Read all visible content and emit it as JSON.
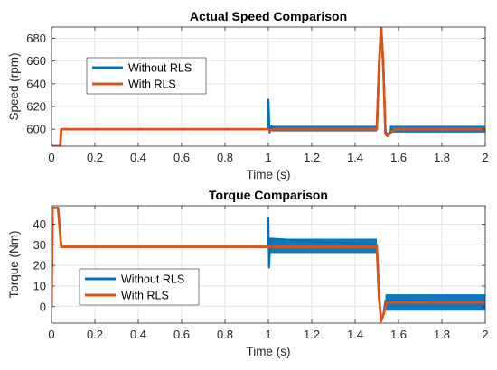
{
  "chart_data": [
    {
      "type": "line",
      "title": "Actual Speed Comparison",
      "xlabel": "Time (s)",
      "ylabel": "Speed (rpm)",
      "xlim": [
        0,
        2
      ],
      "ylim": [
        585,
        690
      ],
      "xticks": [
        "0",
        "0.2",
        "0.4",
        "0.6",
        "0.8",
        "1",
        "1.2",
        "1.4",
        "1.6",
        "1.8",
        "2"
      ],
      "yticks": [
        "600",
        "620",
        "640",
        "660",
        "680"
      ],
      "grid": true,
      "legend_position": "upper-left",
      "series": [
        {
          "name": "Without RLS",
          "color": "#0072BD",
          "points": [
            [
              0,
              585
            ],
            [
              0.04,
              585
            ],
            [
              0.045,
              600
            ],
            [
              1.0,
              600
            ],
            [
              1.0,
              626
            ],
            [
              1.006,
              597
            ],
            [
              1.015,
              603
            ],
            [
              1.03,
              600
            ],
            [
              1.5,
              600
            ],
            [
              1.51,
              660
            ],
            [
              1.52,
              690
            ],
            [
              1.53,
              660
            ],
            [
              1.54,
              598
            ],
            [
              1.55,
              595
            ],
            [
              1.57,
              600
            ],
            [
              2.0,
              600
            ]
          ],
          "ripple_band": [
            [
              1.005,
              1.5,
              598,
              603
            ],
            [
              1.56,
              2.0,
              597,
              603
            ]
          ]
        },
        {
          "name": "With RLS",
          "color": "#D95319",
          "points": [
            [
              0,
              585
            ],
            [
              0.04,
              585
            ],
            [
              0.045,
              600
            ],
            [
              1.0,
              600
            ],
            [
              1.01,
              599
            ],
            [
              1.03,
              600
            ],
            [
              1.5,
              600
            ],
            [
              1.51,
              655
            ],
            [
              1.52,
              690
            ],
            [
              1.53,
              655
            ],
            [
              1.54,
              596
            ],
            [
              1.55,
              594
            ],
            [
              1.58,
              600
            ],
            [
              2.0,
              600
            ]
          ]
        }
      ]
    },
    {
      "type": "line",
      "title": "Torque Comparison",
      "xlabel": "Time (s)",
      "ylabel": "Torque (Nm)",
      "xlim": [
        0,
        2
      ],
      "ylim": [
        -8,
        49
      ],
      "xticks": [
        "0",
        "0.2",
        "0.4",
        "0.6",
        "0.8",
        "1",
        "1.2",
        "1.4",
        "1.6",
        "1.8",
        "2"
      ],
      "yticks": [
        "0",
        "10",
        "20",
        "30",
        "40"
      ],
      "grid": true,
      "legend_position": "lower-left",
      "series": [
        {
          "name": "Without RLS",
          "color": "#0072BD",
          "points": [
            [
              0,
              0
            ],
            [
              0.005,
              48
            ],
            [
              0.03,
              48
            ],
            [
              0.045,
              29
            ],
            [
              1.0,
              29
            ],
            [
              1.0,
              43
            ],
            [
              1.003,
              19
            ],
            [
              1.01,
              33
            ],
            [
              1.5,
              30
            ],
            [
              1.51,
              5
            ],
            [
              1.52,
              -7
            ],
            [
              1.53,
              -4
            ],
            [
              1.54,
              3
            ],
            [
              2.0,
              2
            ]
          ],
          "ripple_band": [
            [
              1.005,
              1.5,
              26,
              33
            ],
            [
              1.54,
              2.0,
              -2,
              6
            ]
          ]
        },
        {
          "name": "With RLS",
          "color": "#D95319",
          "points": [
            [
              0,
              0
            ],
            [
              0.005,
              48
            ],
            [
              0.03,
              48
            ],
            [
              0.045,
              29
            ],
            [
              1.5,
              29
            ],
            [
              1.51,
              5
            ],
            [
              1.52,
              -7
            ],
            [
              1.53,
              -4
            ],
            [
              1.545,
              2
            ],
            [
              2.0,
              2
            ]
          ]
        }
      ]
    }
  ]
}
